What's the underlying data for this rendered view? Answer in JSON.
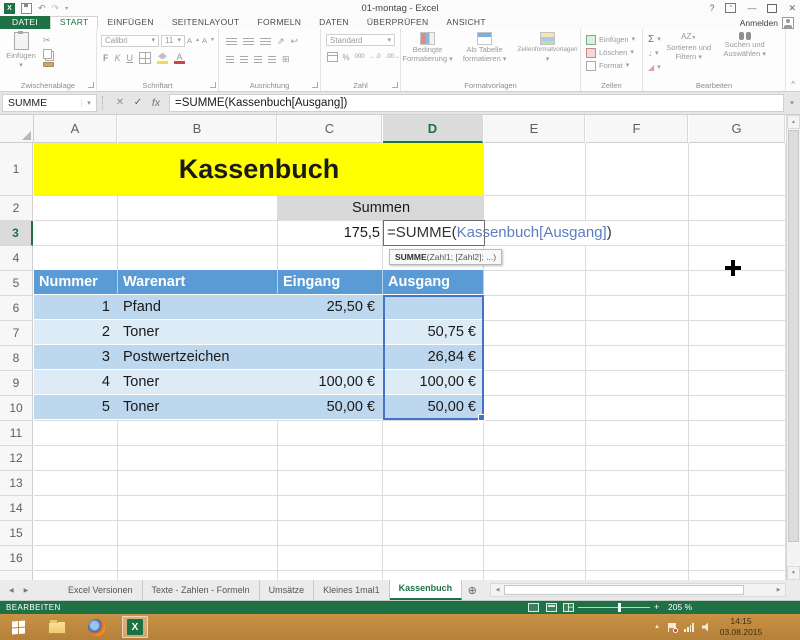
{
  "window": {
    "title": "01-montag - Excel",
    "signin": "Anmelden"
  },
  "ribbon": {
    "tabs": [
      {
        "label": "DATEI",
        "file": true
      },
      {
        "label": "START",
        "active": true
      },
      {
        "label": "EINFÜGEN"
      },
      {
        "label": "SEITENLAYOUT"
      },
      {
        "label": "FORMELN"
      },
      {
        "label": "DATEN"
      },
      {
        "label": "ÜBERPRÜFEN"
      },
      {
        "label": "ANSICHT"
      }
    ],
    "clipboard": {
      "label": "Zwischenablage",
      "paste": "Einfügen"
    },
    "font": {
      "label": "Schriftart",
      "family": "Calibri",
      "size": "11",
      "bold": "F",
      "italic": "K",
      "underline": "U"
    },
    "alignment": {
      "label": "Ausrichtung"
    },
    "number": {
      "label": "Zahl",
      "format": "Standard",
      "percent": "%",
      "thousands": "000",
      "dec_more": "←.0",
      "dec_less": ".00→"
    },
    "styles": {
      "label": "Formatvorlagen",
      "conditional_1": "Bedingte",
      "conditional_2": "Formatierung",
      "as_table_1": "Als Tabelle",
      "as_table_2": "formatieren",
      "cell_styles": "Zellenformatvorlagen"
    },
    "cells_group": {
      "label": "Zellen",
      "insert": "Einfügen",
      "delete": "Löschen",
      "format": "Format"
    },
    "editing": {
      "label": "Bearbeiten",
      "sort_1": "Sortieren und",
      "sort_2": "Filtern",
      "find_1": "Suchen und",
      "find_2": "Auswählen"
    }
  },
  "formula_bar": {
    "name_box": "SUMME"
  },
  "formula": {
    "prefix": "=SUMME(",
    "reference": "Kassenbuch[Ausgang]",
    "suffix": ")"
  },
  "tooltip": {
    "function": "SUMME",
    "args": "(Zahl1; [Zahl2]; ...)"
  },
  "sheet": {
    "columns": [
      "A",
      "B",
      "C",
      "D",
      "E",
      "F",
      "G"
    ],
    "selected_column": "D",
    "rows": [
      "1",
      "2",
      "3",
      "4",
      "5",
      "6",
      "7",
      "8",
      "9",
      "10",
      "11",
      "12",
      "13",
      "14",
      "15",
      "16"
    ],
    "selected_row": "3",
    "title_cell": "Kassenbuch",
    "summen_cell": "Summen",
    "c3_value": "175,5",
    "table": {
      "headers": [
        "Nummer",
        "Warenart",
        "Eingang",
        "Ausgang"
      ],
      "rows": [
        [
          "1",
          "Pfand",
          "25,50 €",
          ""
        ],
        [
          "2",
          "Toner",
          "",
          "50,75 €"
        ],
        [
          "3",
          "Postwertzeichen",
          "",
          "26,84 €"
        ],
        [
          "4",
          "Toner",
          "100,00 €",
          "100,00 €"
        ],
        [
          "5",
          "Toner",
          "50,00 €",
          "50,00 €"
        ]
      ]
    }
  },
  "sheet_tabs": [
    {
      "label": "Excel Versionen"
    },
    {
      "label": "Texte - Zahlen - Formeln"
    },
    {
      "label": "Umsätze"
    },
    {
      "label": "Kleines 1mal1"
    },
    {
      "label": "Kassenbuch",
      "active": true
    }
  ],
  "status_bar": {
    "mode": "BEARBEITEN",
    "zoom": "205 %"
  },
  "taskbar": {
    "time": "14:15",
    "date": "03.08.2015"
  },
  "colors": {
    "excel_green": "#1E7145",
    "table_header": "#5B9BD5",
    "band_dark": "#BDD7EE",
    "band_light": "#DDEBF7",
    "title_yellow": "#FFFF00",
    "reference_blue": "#4472C4",
    "taskbar_orange": "#C18A3E"
  },
  "icons": {
    "excel_logo": "X",
    "undo": "↶",
    "redo": "↷",
    "qat_more": "▾",
    "help": "?",
    "minimize": "—",
    "close": "✕",
    "cancel": "✕",
    "enter": "✓",
    "fx": "fx",
    "scissors": "✂",
    "dropdown": "▾",
    "sum": "Σ",
    "plus_sheet": "⊕",
    "up_arrow": "▲",
    "down_arrow": "▼",
    "left_arrow": "◀",
    "right_arrow": "▶",
    "collapse": "^",
    "letter_a": "A",
    "letter_z": "Z",
    "orientation": "⇗",
    "wrap": "↩",
    "merge": "⊞",
    "fill_down": "↓",
    "eraser": "◢",
    "slider_minus": "−",
    "slider_plus": "+",
    "tray_caret": "▲"
  }
}
